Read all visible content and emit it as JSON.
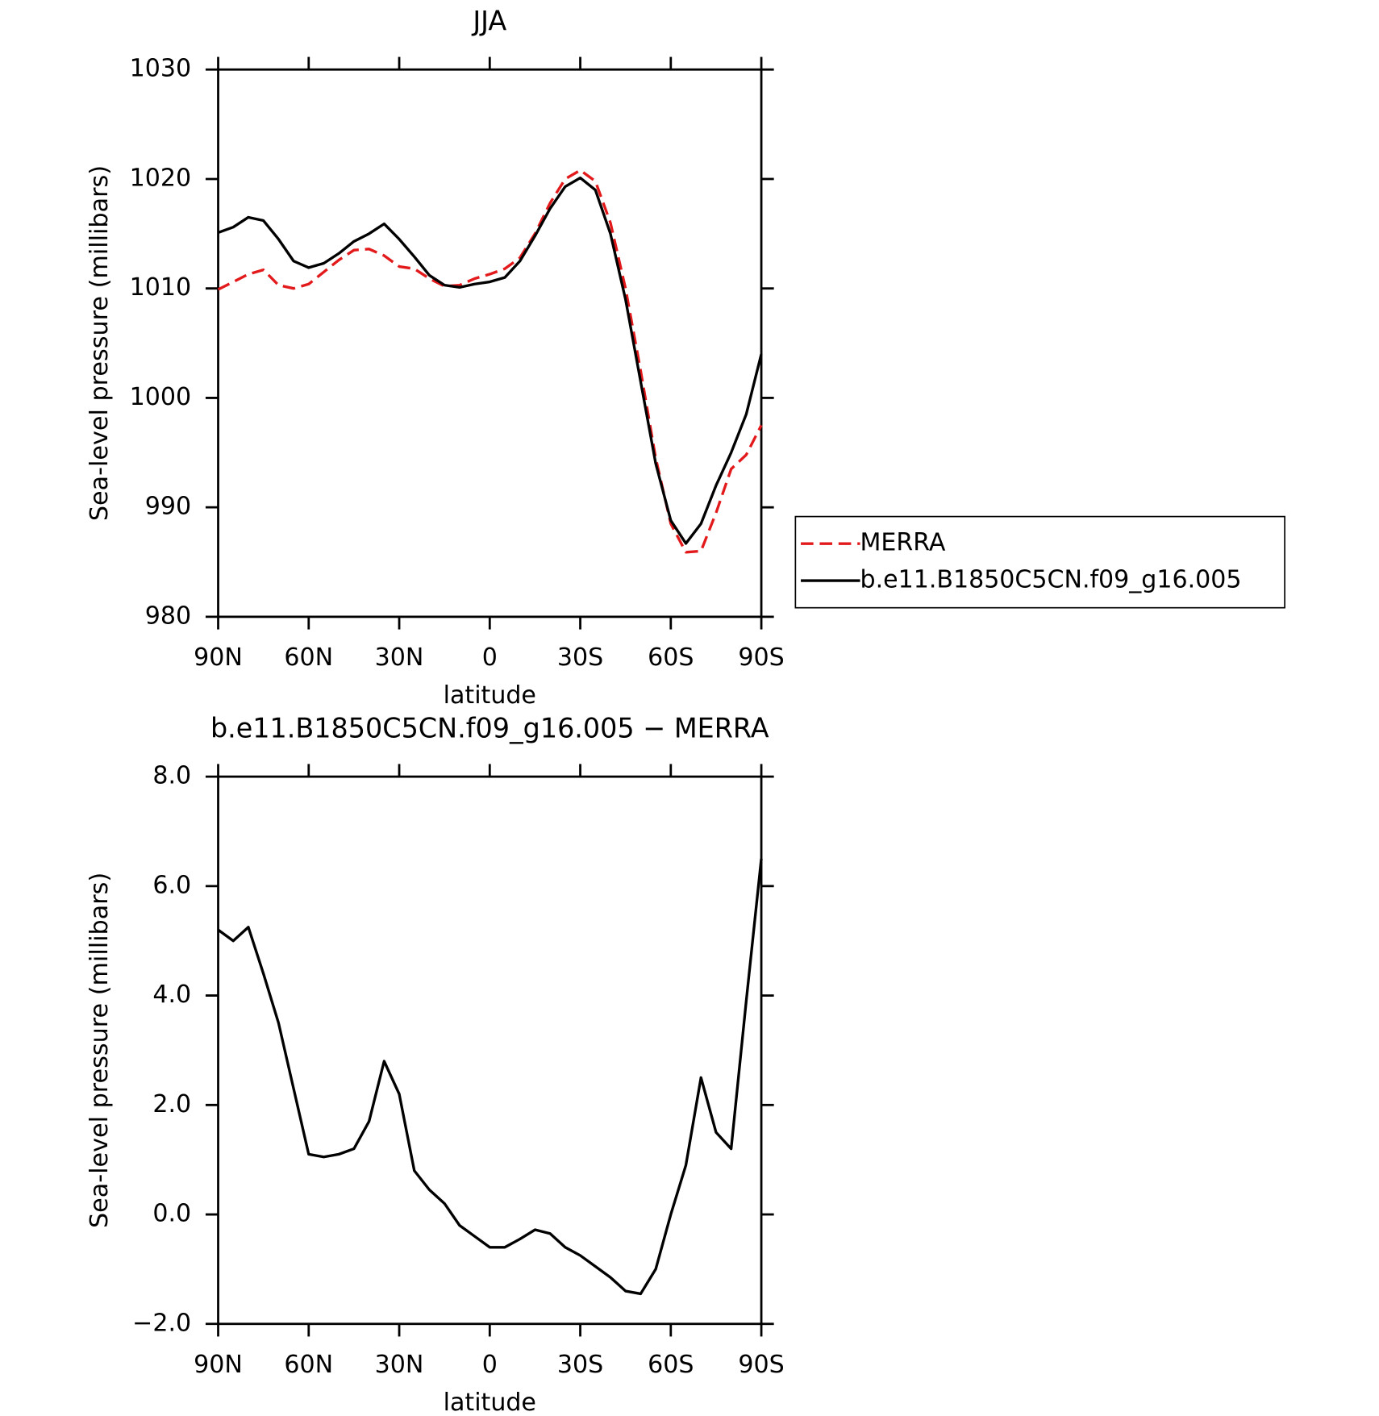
{
  "chart_data": [
    {
      "type": "line",
      "title": "JJA",
      "xlabel": "latitude",
      "ylabel": "Sea-level pressure (millibars)",
      "x": [
        90,
        85,
        80,
        75,
        70,
        65,
        60,
        55,
        50,
        45,
        40,
        35,
        30,
        25,
        20,
        15,
        10,
        5,
        0,
        -5,
        -10,
        -15,
        -20,
        -25,
        -30,
        -35,
        -40,
        -45,
        -50,
        -55,
        -60,
        -65,
        -70,
        -75,
        -80,
        -85,
        -90
      ],
      "series": [
        {
          "name": "MERRA",
          "color": "#e31a1c",
          "dashed": true,
          "values": [
            1009.9,
            1010.6,
            1011.3,
            1011.7,
            1010.3,
            1010.0,
            1010.4,
            1011.5,
            1012.6,
            1013.5,
            1013.6,
            1013.0,
            1012.0,
            1011.8,
            1010.9,
            1010.2,
            1010.3,
            1010.9,
            1011.3,
            1011.8,
            1012.8,
            1015.0,
            1017.8,
            1020.0,
            1020.8,
            1019.8,
            1016.0,
            1010.0,
            1002.5,
            994.5,
            988.5,
            985.9,
            986.0,
            989.5,
            993.5,
            994.8,
            997.5
          ]
        },
        {
          "name": "b.e11.B1850C5CN.f09_g16.005",
          "color": "#000000",
          "dashed": false,
          "values": [
            1015.1,
            1015.6,
            1016.5,
            1016.2,
            1014.5,
            1012.5,
            1011.9,
            1012.3,
            1013.2,
            1014.3,
            1015.0,
            1015.9,
            1014.5,
            1012.9,
            1011.2,
            1010.3,
            1010.1,
            1010.4,
            1010.6,
            1011.0,
            1012.5,
            1014.8,
            1017.3,
            1019.3,
            1020.1,
            1019.0,
            1015.0,
            1009.0,
            1001.5,
            994.0,
            988.8,
            986.7,
            988.5,
            992.0,
            995.0,
            998.5,
            1004.0
          ]
        }
      ],
      "xlim": [
        90,
        -90
      ],
      "xticks": [
        {
          "value": 90,
          "label": "90N"
        },
        {
          "value": 60,
          "label": "60N"
        },
        {
          "value": 30,
          "label": "30N"
        },
        0,
        {
          "value": -30,
          "label": "30S"
        },
        {
          "value": -60,
          "label": "60S"
        },
        {
          "value": -90,
          "label": "90S"
        }
      ],
      "ylim": [
        980,
        1030
      ],
      "yticks": [
        980,
        990,
        1000,
        1010,
        1020,
        1030
      ],
      "legend": "outside-right"
    },
    {
      "type": "line",
      "title": "b.e11.B1850C5CN.f09_g16.005 − MERRA",
      "xlabel": "latitude",
      "ylabel": "Sea-level pressure (millibars)",
      "x": [
        90,
        85,
        80,
        75,
        70,
        65,
        60,
        55,
        50,
        45,
        40,
        35,
        30,
        25,
        20,
        15,
        10,
        5,
        0,
        -5,
        -10,
        -15,
        -20,
        -25,
        -30,
        -35,
        -40,
        -45,
        -50,
        -55,
        -60,
        -65,
        -70,
        -75,
        -80,
        -85,
        -90
      ],
      "series": [
        {
          "color": "#000000",
          "dashed": false,
          "values": [
            5.2,
            5.0,
            5.25,
            4.4,
            3.5,
            2.3,
            1.1,
            1.05,
            1.1,
            1.2,
            1.7,
            2.8,
            2.2,
            0.8,
            0.45,
            0.2,
            -0.2,
            -0.4,
            -0.6,
            -0.6,
            -0.45,
            -0.28,
            -0.35,
            -0.6,
            -0.75,
            -0.95,
            -1.15,
            -1.4,
            -1.45,
            -1.0,
            0.0,
            0.9,
            2.5,
            1.5,
            1.2,
            3.9,
            6.5
          ]
        }
      ],
      "xlim": [
        90,
        -90
      ],
      "xticks": [
        {
          "value": 90,
          "label": "90N"
        },
        {
          "value": 60,
          "label": "60N"
        },
        {
          "value": 30,
          "label": "30N"
        },
        0,
        {
          "value": -30,
          "label": "30S"
        },
        {
          "value": -60,
          "label": "60S"
        },
        {
          "value": -90,
          "label": "90S"
        }
      ],
      "ylim": [
        -2,
        8
      ],
      "yticks": [
        {
          "value": -2,
          "label": "−2.0"
        },
        {
          "value": 0,
          "label": "0.0"
        },
        {
          "value": 2,
          "label": "2.0"
        },
        {
          "value": 4,
          "label": "4.0"
        },
        {
          "value": 6,
          "label": "6.0"
        },
        {
          "value": 8,
          "label": "8.0"
        }
      ]
    }
  ]
}
